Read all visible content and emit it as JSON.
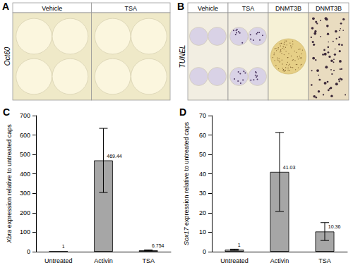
{
  "image_panels": [
    {
      "letter": "A",
      "columns": [
        "Vehicle",
        "TSA"
      ],
      "row_label": "Oct60"
    },
    {
      "letter": "B",
      "columns": [
        "Vehicle",
        "TSA",
        "DNMT3B",
        "DNMT3B"
      ],
      "row_label": "TUNEL"
    }
  ],
  "chart_data": [
    {
      "type": "bar",
      "annotations": [
        "C"
      ],
      "categories": [
        "Untreated",
        "Activin",
        "TSA"
      ],
      "values": [
        1,
        469.44,
        6.754
      ],
      "error": [
        0,
        165,
        2
      ],
      "ylabel": "Xbra expression relative to untreated caps",
      "ylim": [
        0,
        700
      ],
      "yticks": [
        0,
        100,
        200,
        300,
        400,
        500,
        600,
        700
      ],
      "color": "#a6a6a6",
      "grid": false,
      "data_labels": true
    },
    {
      "type": "bar",
      "annotations": [
        "D"
      ],
      "categories": [
        "Untreated",
        "Activin",
        "TSA"
      ],
      "values": [
        1,
        41.03,
        10.36
      ],
      "error": [
        0.3,
        20.3,
        4.6
      ],
      "ylabel": "Sox17 expression relative to untreated caps",
      "ylim": [
        0,
        70
      ],
      "yticks": [
        0,
        10,
        20,
        30,
        40,
        50,
        60,
        70
      ],
      "color": "#a6a6a6",
      "grid": false,
      "data_labels": true
    }
  ]
}
